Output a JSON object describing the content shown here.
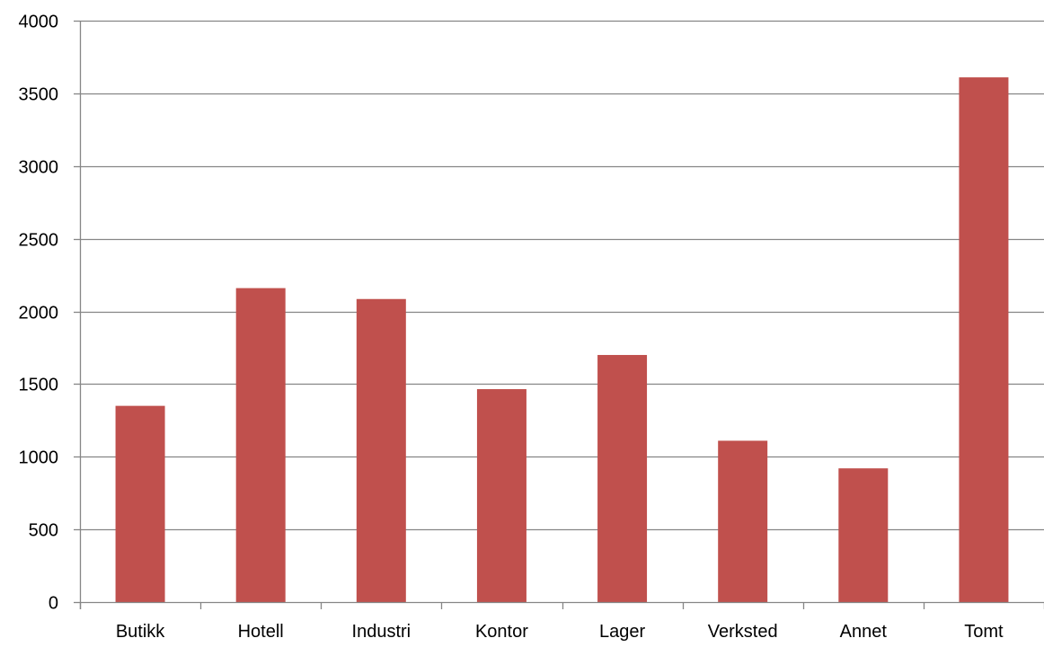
{
  "chart_data": {
    "type": "bar",
    "title": "",
    "xlabel": "",
    "ylabel": "",
    "categories": [
      "Butikk",
      "Hotell",
      "Industri",
      "Kontor",
      "Lager",
      "Verksted",
      "Annet",
      "Tomt"
    ],
    "values": [
      1350,
      2160,
      2085,
      1465,
      1700,
      1110,
      920,
      3610
    ],
    "ylim": [
      0,
      4000
    ],
    "yticks": [
      "0",
      "500",
      "1000",
      "1500",
      "2000",
      "2500",
      "3000",
      "3500",
      "4000"
    ],
    "grid": true,
    "legend": "none",
    "colors": {
      "bar": "#c0504d",
      "grid": "#868686",
      "axis": "#868686"
    }
  }
}
